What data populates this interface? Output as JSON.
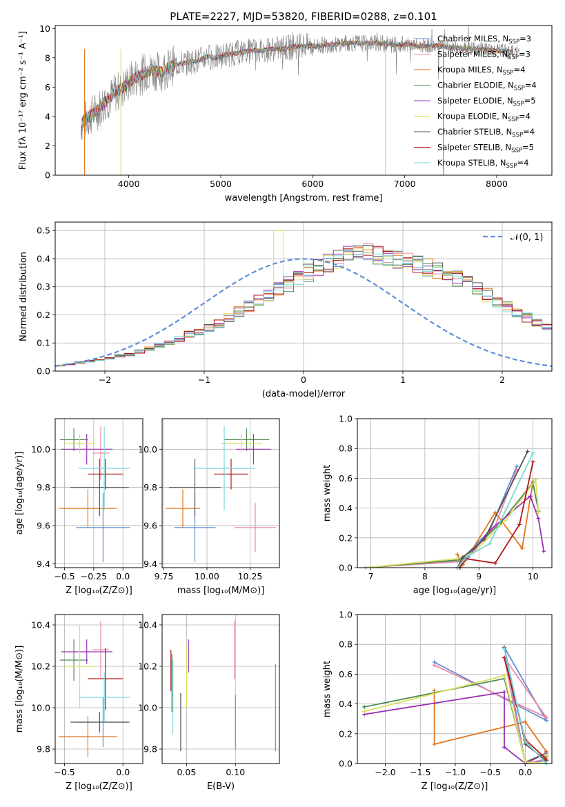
{
  "colors": [
    "#5f8fd8",
    "#e8889e",
    "#e0761d",
    "#4e8a4e",
    "#9b30b4",
    "#d8e060",
    "#555555",
    "#b01818",
    "#7ad8d8"
  ],
  "chart_data": [
    {
      "type": "line",
      "title": "PLATE=2227, MJD=53820, FIBERID=0288, z=0.101",
      "xlabel": "wavelength [Angstrom, rest frame]",
      "ylabel": "Flux [fλ 10⁻¹⁷ erg cm⁻² s⁻¹ A⁻¹]",
      "xlim": [
        3200,
        8600
      ],
      "ylim": [
        0,
        10.2
      ],
      "xticks": [
        "4000",
        "5000",
        "6000",
        "7000",
        "8000"
      ],
      "yticks": [
        "0",
        "2",
        "4",
        "6",
        "8",
        "10"
      ],
      "spectrum_x": [
        3480,
        3550,
        3650,
        3750,
        3850,
        3950,
        4050,
        4150,
        4250,
        4350,
        4450,
        4550,
        4650,
        4750,
        4850,
        4950,
        5050,
        5150,
        5250,
        5350,
        5450,
        5550,
        5650,
        5750,
        5850,
        5950,
        6050,
        6150,
        6250,
        6350,
        6450,
        6550,
        6650,
        6750,
        6850,
        6950,
        7050,
        7150,
        7250,
        7350,
        7450,
        7550,
        7650,
        7750,
        7850,
        7950,
        8050,
        8150,
        8250
      ],
      "spectrum_y": [
        3.5,
        3.9,
        4.4,
        5.0,
        5.6,
        6.0,
        6.6,
        6.9,
        7.2,
        7.0,
        7.4,
        7.6,
        7.7,
        7.8,
        8.1,
        8.0,
        8.2,
        8.3,
        8.4,
        8.5,
        8.5,
        8.6,
        8.6,
        8.7,
        8.8,
        8.8,
        8.8,
        8.9,
        8.9,
        9.0,
        9.0,
        9.0,
        9.0,
        9.0,
        8.9,
        8.9,
        8.9,
        8.8,
        8.8,
        8.8,
        8.7,
        8.7,
        8.6,
        8.6,
        8.6,
        8.5,
        8.5,
        8.4,
        8.4
      ],
      "legend_position": "right",
      "series": [
        {
          "name": "Chabrier MILES, N_SSP=3"
        },
        {
          "name": "Salpeter MILES, N_SSP=3"
        },
        {
          "name": "Kroupa MILES, N_SSP=4"
        },
        {
          "name": "Chabrier ELODIE, N_SSP=4"
        },
        {
          "name": "Salpeter ELODIE, N_SSP=5"
        },
        {
          "name": "Kroupa ELODIE, N_SSP=4"
        },
        {
          "name": "Chabrier STELIB, N_SSP=4"
        },
        {
          "name": "Salpeter STELIB, N_SSP=5"
        },
        {
          "name": "Kroupa STELIB, N_SSP=4"
        }
      ]
    },
    {
      "type": "bar",
      "xlabel": "(data-model)/error",
      "ylabel": "Normed distribution",
      "xlim": [
        -2.5,
        2.5
      ],
      "ylim": [
        0,
        0.53
      ],
      "xticks": [
        "−2",
        "−1",
        "0",
        "1",
        "2"
      ],
      "yticks": [
        "0.0",
        "0.1",
        "0.2",
        "0.3",
        "0.4",
        "0.5"
      ],
      "legend": "𝒩(0, 1)",
      "legend_position": "top-right",
      "bin_width": 0.1,
      "bins_left": -2.5,
      "base_values": [
        0.02,
        0.025,
        0.03,
        0.035,
        0.04,
        0.045,
        0.055,
        0.06,
        0.07,
        0.08,
        0.09,
        0.1,
        0.115,
        0.13,
        0.14,
        0.155,
        0.17,
        0.19,
        0.21,
        0.23,
        0.25,
        0.27,
        0.29,
        0.31,
        0.33,
        0.35,
        0.37,
        0.385,
        0.4,
        0.41,
        0.415,
        0.42,
        0.41,
        0.405,
        0.4,
        0.39,
        0.38,
        0.37,
        0.36,
        0.345,
        0.33,
        0.31,
        0.29,
        0.27,
        0.25,
        0.23,
        0.21,
        0.19,
        0.175,
        0.16,
        0.145,
        0.13,
        0.115,
        0.1,
        0.09,
        0.08,
        0.07,
        0.06,
        0.055,
        0.05,
        0.045,
        0.04,
        0.035,
        0.03,
        0.028,
        0.026,
        0.024,
        0.022,
        0.02,
        0.02
      ]
    },
    {
      "type": "scatter",
      "xlabel": "Z [log₁₀(Z/Z⊙)]",
      "ylabel": "age  [log₁₀(age/yr)]",
      "xlim": [
        -0.58,
        0.17
      ],
      "ylim": [
        9.38,
        10.16
      ],
      "xticks": [
        "−0.5",
        "−0.25",
        "0.0"
      ],
      "yticks": [
        "9.4",
        "9.6",
        "9.8",
        "10.0"
      ],
      "points": [
        {
          "x": -0.17,
          "y": 9.59,
          "xerr": 0.23,
          "yerr": 0.18
        },
        {
          "x": -0.19,
          "y": 9.98,
          "xerr": 0.07,
          "yerr": 0.14
        },
        {
          "x": -0.3,
          "y": 9.69,
          "xerr": 0.25,
          "yerr": 0.1
        },
        {
          "x": -0.42,
          "y": 10.05,
          "xerr": 0.12,
          "yerr": 0.06
        },
        {
          "x": -0.31,
          "y": 10.0,
          "xerr": 0.22,
          "yerr": 0.08
        },
        {
          "x": -0.37,
          "y": 10.03,
          "xerr": 0.13,
          "yerr": 0.05
        },
        {
          "x": -0.2,
          "y": 9.8,
          "xerr": 0.25,
          "yerr": 0.15
        },
        {
          "x": -0.15,
          "y": 9.87,
          "xerr": 0.15,
          "yerr": 0.08
        },
        {
          "x": -0.16,
          "y": 9.9,
          "xerr": 0.22,
          "yerr": 0.22
        }
      ]
    },
    {
      "type": "scatter",
      "xlabel": "mass [log₁₀(M/M⊙)]",
      "ylabel": "",
      "xlim": [
        9.74,
        10.42
      ],
      "ylim": [
        9.38,
        10.16
      ],
      "xticks": [
        "9.75",
        "10.00",
        "10.25"
      ],
      "yticks": [
        "9.4",
        "9.6",
        "9.8",
        "10.0"
      ],
      "points": [
        {
          "x": 9.93,
          "y": 9.59,
          "xerr": 0.12,
          "yerr": 0.18
        },
        {
          "x": 10.28,
          "y": 9.59,
          "xerr": 0.12,
          "yerr": 0.13
        },
        {
          "x": 9.86,
          "y": 9.69,
          "xerr": 0.1,
          "yerr": 0.1
        },
        {
          "x": 10.23,
          "y": 10.05,
          "xerr": 0.13,
          "yerr": 0.06
        },
        {
          "x": 10.27,
          "y": 10.0,
          "xerr": 0.1,
          "yerr": 0.08
        },
        {
          "x": 10.2,
          "y": 10.03,
          "xerr": 0.12,
          "yerr": 0.05
        },
        {
          "x": 9.93,
          "y": 9.8,
          "xerr": 0.15,
          "yerr": 0.15
        },
        {
          "x": 10.14,
          "y": 9.87,
          "xerr": 0.1,
          "yerr": 0.08
        },
        {
          "x": 10.1,
          "y": 9.9,
          "xerr": 0.18,
          "yerr": 0.22
        }
      ]
    },
    {
      "type": "line",
      "xlabel": "age  [log₁₀(age/yr)]",
      "ylabel": "mass weight",
      "xlim": [
        6.75,
        10.35
      ],
      "ylim": [
        0,
        1.0
      ],
      "xticks": [
        "7",
        "8",
        "9",
        "10"
      ],
      "yticks": [
        "0.0",
        "0.2",
        "0.4",
        "0.6",
        "0.8",
        "1.0"
      ],
      "series": [
        {
          "x": [
            6.9,
            8.6,
            8.7,
            9.2,
            9.7
          ],
          "y": [
            0.0,
            0.05,
            0.06,
            0.25,
            0.68
          ]
        },
        {
          "x": [
            6.9,
            8.6,
            8.75,
            9.3,
            9.7
          ],
          "y": [
            0.0,
            0.04,
            0.05,
            0.28,
            0.66
          ]
        },
        {
          "x": [
            8.6,
            8.7,
            9.3,
            9.8,
            10.0
          ],
          "y": [
            0.09,
            0.02,
            0.37,
            0.13,
            0.58
          ]
        },
        {
          "x": [
            6.9,
            8.6,
            8.8,
            9.4,
            10.0,
            10.1
          ],
          "y": [
            0.0,
            0.05,
            0.09,
            0.3,
            0.57,
            0.38
          ]
        },
        {
          "x": [
            8.6,
            8.8,
            9.2,
            9.95,
            10.1,
            10.2
          ],
          "y": [
            0.0,
            0.07,
            0.25,
            0.48,
            0.33,
            0.11
          ]
        },
        {
          "x": [
            6.9,
            8.6,
            8.9,
            9.5,
            10.05,
            10.1
          ],
          "y": [
            0.0,
            0.06,
            0.1,
            0.32,
            0.59,
            0.37
          ]
        },
        {
          "x": [
            8.6,
            8.7,
            9.1,
            9.9
          ],
          "y": [
            0.0,
            0.07,
            0.19,
            0.78
          ]
        },
        {
          "x": [
            8.65,
            8.75,
            9.3,
            9.75,
            10.0
          ],
          "y": [
            0.0,
            0.06,
            0.03,
            0.29,
            0.71
          ]
        },
        {
          "x": [
            8.6,
            8.8,
            9.2,
            10.0
          ],
          "y": [
            0.0,
            0.08,
            0.16,
            0.77
          ]
        }
      ]
    },
    {
      "type": "scatter",
      "xlabel": "Z [log₁₀(Z/Z⊙)]",
      "ylabel": "mass [log₁₀(M/M⊙)]",
      "xlim": [
        -0.58,
        0.17
      ],
      "ylim": [
        9.73,
        10.45
      ],
      "xticks": [
        "−0.5",
        "0.0"
      ],
      "yticks": [
        "9.8",
        "10.0",
        "10.2",
        "10.4"
      ],
      "points": [
        {
          "x": -0.17,
          "y": 9.93,
          "xerr": 0.23,
          "yerr": 0.12
        },
        {
          "x": -0.19,
          "y": 10.28,
          "xerr": 0.07,
          "yerr": 0.14
        },
        {
          "x": -0.3,
          "y": 9.86,
          "xerr": 0.25,
          "yerr": 0.1
        },
        {
          "x": -0.42,
          "y": 10.23,
          "xerr": 0.12,
          "yerr": 0.1
        },
        {
          "x": -0.31,
          "y": 10.27,
          "xerr": 0.22,
          "yerr": 0.06
        },
        {
          "x": -0.37,
          "y": 10.2,
          "xerr": 0.13,
          "yerr": 0.2
        },
        {
          "x": -0.2,
          "y": 9.93,
          "xerr": 0.25,
          "yerr": 0.05
        },
        {
          "x": -0.15,
          "y": 10.14,
          "xerr": 0.15,
          "yerr": 0.15
        },
        {
          "x": -0.16,
          "y": 10.05,
          "xerr": 0.22,
          "yerr": 0.12
        }
      ]
    },
    {
      "type": "scatter",
      "xlabel": "E(B-V)",
      "ylabel": "",
      "xlim": [
        0.025,
        0.145
      ],
      "ylim": [
        9.73,
        10.45
      ],
      "xticks": [
        "0.05",
        "0.10"
      ],
      "yticks": [
        "9.8",
        "10.0",
        "10.2",
        "10.4"
      ],
      "points": [
        {
          "x": 0.1,
          "y": 9.93,
          "xerr": 0,
          "yerr": 0.13
        },
        {
          "x": 0.099,
          "y": 10.28,
          "xerr": 0,
          "yerr": 0.14
        },
        {
          "x": 0.141,
          "y": 10.0,
          "xerr": 0,
          "yerr": 0.21
        },
        {
          "x": 0.035,
          "y": 10.12,
          "xerr": 0,
          "yerr": 0.14
        },
        {
          "x": 0.052,
          "y": 10.25,
          "xerr": 0,
          "yerr": 0.08
        },
        {
          "x": 0.05,
          "y": 10.15,
          "xerr": 0,
          "yerr": 0.15
        },
        {
          "x": 0.044,
          "y": 9.93,
          "xerr": 0,
          "yerr": 0.14
        },
        {
          "x": 0.034,
          "y": 10.18,
          "xerr": 0,
          "yerr": 0.1
        },
        {
          "x": 0.036,
          "y": 10.05,
          "xerr": 0,
          "yerr": 0.18
        }
      ]
    },
    {
      "type": "line",
      "xlabel": "Z [log₁₀(Z/Z⊙)]",
      "ylabel": "mass weight",
      "xlim": [
        -2.4,
        0.38
      ],
      "ylim": [
        0,
        1.0
      ],
      "xticks": [
        "−2.0",
        "−1.5",
        "−1.0",
        "−0.5",
        "0.0"
      ],
      "yticks": [
        "0.0",
        "0.2",
        "0.4",
        "0.6",
        "0.8",
        "1.0"
      ],
      "series": [
        {
          "x": [
            -1.3,
            0.3,
            -0.3,
            0.0,
            0.3
          ],
          "y": [
            0.68,
            0.29,
            0.78,
            0.0,
            0.02
          ]
        },
        {
          "x": [
            -1.3,
            0.3,
            -0.3,
            0.0,
            0.3
          ],
          "y": [
            0.66,
            0.31,
            0.71,
            0.0,
            0.03
          ]
        },
        {
          "x": [
            -1.3,
            -1.3,
            0.0,
            0.3,
            0.3
          ],
          "y": [
            0.49,
            0.13,
            0.28,
            0.08,
            0.0
          ]
        },
        {
          "x": [
            -2.3,
            -0.3,
            0.0,
            0.3,
            0.3
          ],
          "y": [
            0.38,
            0.57,
            0.01,
            0.07,
            0.05
          ]
        },
        {
          "x": [
            -2.3,
            -0.3,
            -0.3,
            0.0,
            0.3
          ],
          "y": [
            0.33,
            0.48,
            0.11,
            0.0,
            0.07
          ]
        },
        {
          "x": [
            -2.3,
            -0.3,
            0.0,
            0.3,
            0.3
          ],
          "y": [
            0.35,
            0.59,
            0.01,
            0.0,
            0.06
          ]
        },
        {
          "x": [
            -0.3,
            0.0,
            0.3
          ],
          "y": [
            0.78,
            0.13,
            0.02
          ]
        },
        {
          "x": [
            -0.3,
            0.0,
            0.3
          ],
          "y": [
            0.71,
            0.16,
            0.03
          ]
        },
        {
          "x": [
            -0.3,
            0.0,
            0.3
          ],
          "y": [
            0.77,
            0.15,
            0.0
          ]
        }
      ]
    }
  ]
}
